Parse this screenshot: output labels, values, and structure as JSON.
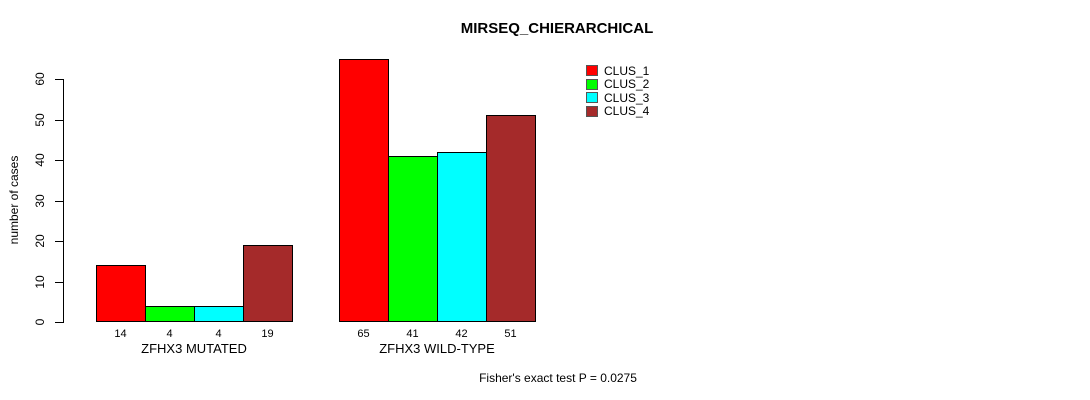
{
  "chart_data": {
    "type": "bar",
    "title": "MIRSEQ_CHIERARCHICAL",
    "ylabel": "number of cases",
    "xlabel": "",
    "annotation": "Fisher's exact test P = 0.0275",
    "categories": [
      "ZFHX3 MUTATED",
      "ZFHX3 WILD-TYPE"
    ],
    "series": [
      {
        "name": "CLUS_1",
        "color": "#FF0000",
        "values": [
          14,
          65
        ]
      },
      {
        "name": "CLUS_2",
        "color": "#00FF00",
        "values": [
          4,
          41
        ]
      },
      {
        "name": "CLUS_3",
        "color": "#00FFFF",
        "values": [
          4,
          42
        ]
      },
      {
        "name": "CLUS_4",
        "color": "#A52A2A",
        "values": [
          19,
          51
        ]
      }
    ],
    "yticks": [
      0,
      10,
      20,
      30,
      40,
      50,
      60
    ],
    "ylim": [
      0,
      65
    ],
    "grid": false,
    "bar_value_labels_shown": true,
    "legend_position": "inside-top-right",
    "bar_border_color": "#000000",
    "background_color": "#FFFFFF"
  }
}
